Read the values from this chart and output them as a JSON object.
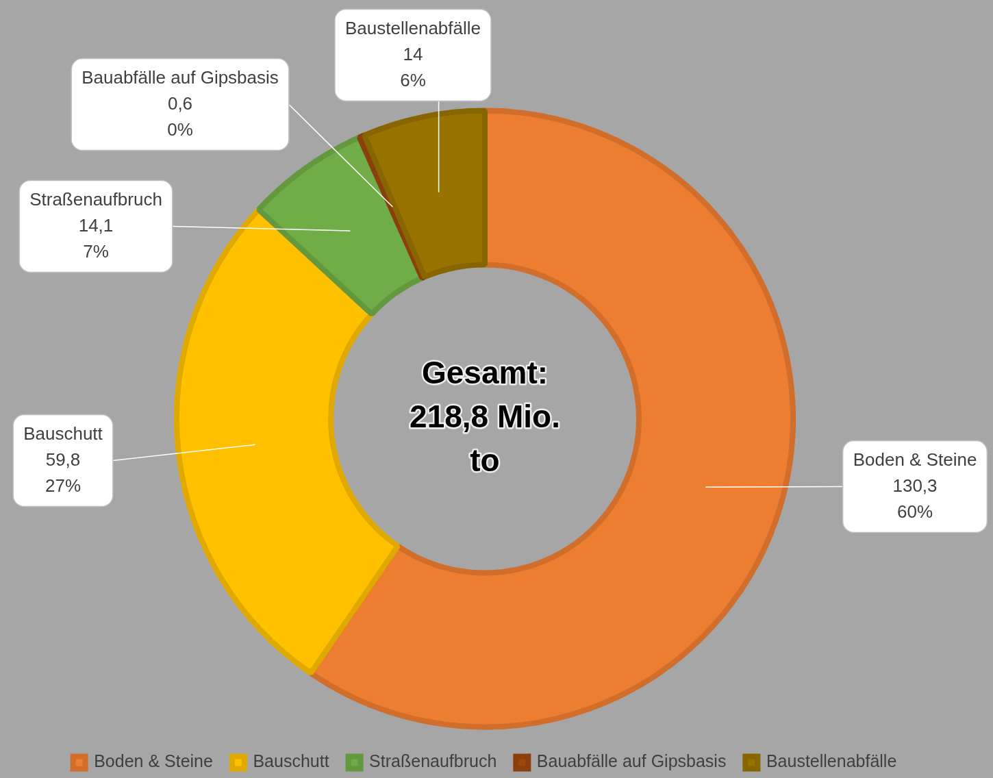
{
  "chart_data": {
    "type": "donut",
    "categories": [
      "Boden & Steine",
      "Bauschutt",
      "Straßenaufbruch",
      "Bauabfälle auf Gipsbasis",
      "Baustellenabfälle"
    ],
    "values": [
      130.3,
      59.8,
      14.1,
      0.6,
      14
    ],
    "value_labels": [
      "130,3\n60%",
      "59,8\n27%",
      "14,1\n7%",
      "0,6\n0%",
      "14\n6%"
    ],
    "colors": [
      "#ed7d31",
      "#ffc000",
      "#70ad47",
      "#9e480e",
      "#997300"
    ],
    "annotations": [
      "Gesamt:\n218,8 Mio.\nto"
    ],
    "legend": "bottom"
  }
}
